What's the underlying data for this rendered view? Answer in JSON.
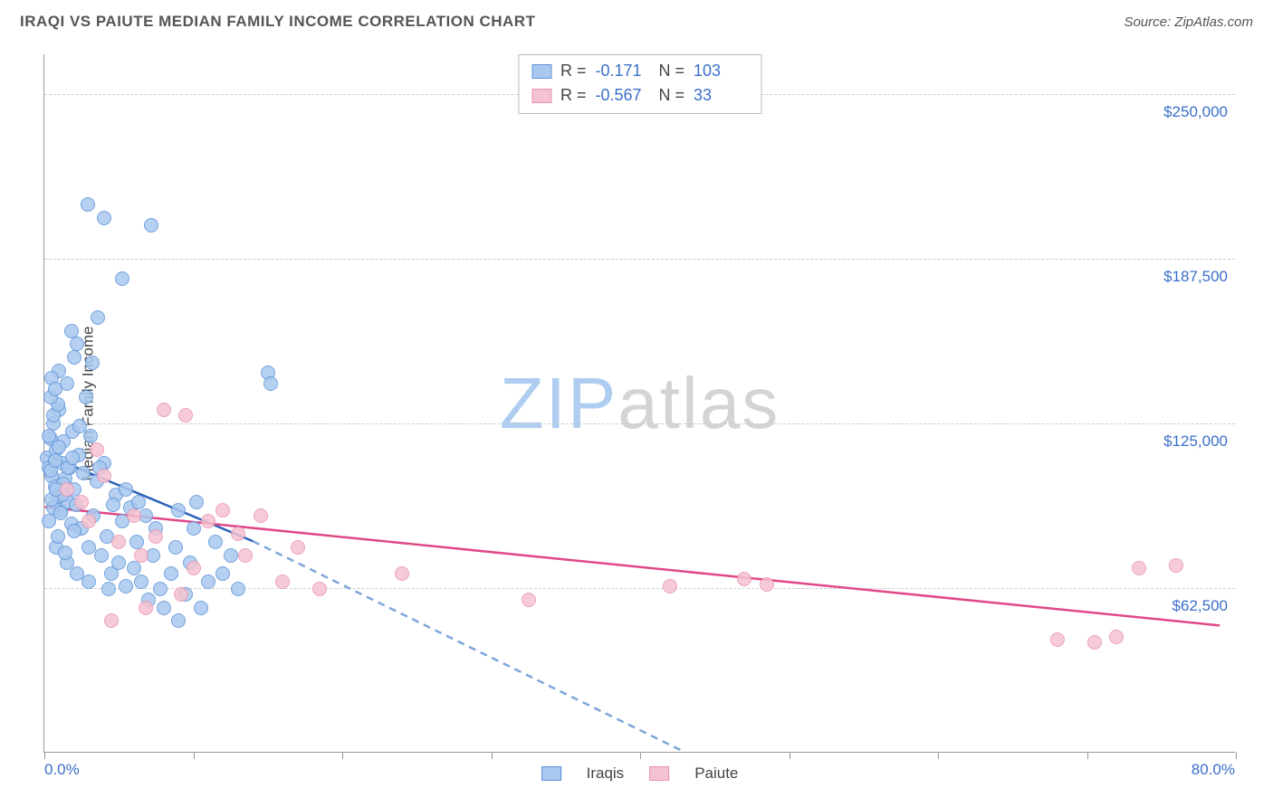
{
  "title": "IRAQI VS PAIUTE MEDIAN FAMILY INCOME CORRELATION CHART",
  "source_label": "Source: ZipAtlas.com",
  "y_axis_label": "Median Family Income",
  "watermark": {
    "part1": "ZIP",
    "part2": "atlas"
  },
  "x_range": {
    "min": 0,
    "max": 80,
    "label_min": "0.0%",
    "label_max": "80.0%"
  },
  "y_range": {
    "min": 0,
    "max": 265000
  },
  "y_gridlines": [
    {
      "value": 62500,
      "label": "$62,500"
    },
    {
      "value": 125000,
      "label": "$125,000"
    },
    {
      "value": 187500,
      "label": "$187,500"
    },
    {
      "value": 250000,
      "label": "$250,000"
    }
  ],
  "x_ticks": [
    0,
    10,
    20,
    30,
    40,
    50,
    60,
    70,
    80
  ],
  "series": [
    {
      "name": "Iraqis",
      "fill_color": "#a9c8ef",
      "stroke_color": "#5e93d8",
      "line_color": "#2b63b8",
      "dash_color": "#7da6db",
      "R": "-0.171",
      "N": "103",
      "trend": {
        "x1": 0,
        "y1": 113000,
        "x2": 14,
        "y2": 80000,
        "dash_to_x": 43,
        "dash_to_y": 0
      },
      "marker_radius": 8,
      "points": [
        {
          "x": 0.2,
          "y": 112000
        },
        {
          "x": 0.3,
          "y": 108000
        },
        {
          "x": 0.4,
          "y": 119000
        },
        {
          "x": 0.5,
          "y": 105000
        },
        {
          "x": 0.6,
          "y": 125000
        },
        {
          "x": 0.7,
          "y": 101000
        },
        {
          "x": 0.8,
          "y": 115000
        },
        {
          "x": 0.9,
          "y": 97000
        },
        {
          "x": 1.0,
          "y": 130000
        },
        {
          "x": 1.1,
          "y": 92000
        },
        {
          "x": 1.2,
          "y": 110000
        },
        {
          "x": 1.3,
          "y": 118000
        },
        {
          "x": 1.4,
          "y": 104000
        },
        {
          "x": 1.5,
          "y": 140000
        },
        {
          "x": 1.6,
          "y": 95000
        },
        {
          "x": 1.7,
          "y": 108000
        },
        {
          "x": 1.8,
          "y": 87000
        },
        {
          "x": 1.9,
          "y": 122000
        },
        {
          "x": 2.0,
          "y": 100000
        },
        {
          "x": 2.1,
          "y": 94000
        },
        {
          "x": 2.3,
          "y": 113000
        },
        {
          "x": 2.5,
          "y": 85000
        },
        {
          "x": 2.6,
          "y": 106000
        },
        {
          "x": 2.8,
          "y": 135000
        },
        {
          "x": 3.0,
          "y": 78000
        },
        {
          "x": 3.1,
          "y": 120000
        },
        {
          "x": 3.3,
          "y": 90000
        },
        {
          "x": 3.5,
          "y": 103000
        },
        {
          "x": 3.8,
          "y": 75000
        },
        {
          "x": 4.0,
          "y": 110000
        },
        {
          "x": 4.2,
          "y": 82000
        },
        {
          "x": 4.5,
          "y": 68000
        },
        {
          "x": 4.8,
          "y": 98000
        },
        {
          "x": 5.0,
          "y": 72000
        },
        {
          "x": 5.2,
          "y": 88000
        },
        {
          "x": 5.5,
          "y": 63000
        },
        {
          "x": 5.8,
          "y": 93000
        },
        {
          "x": 6.0,
          "y": 70000
        },
        {
          "x": 6.2,
          "y": 80000
        },
        {
          "x": 6.5,
          "y": 65000
        },
        {
          "x": 7.0,
          "y": 58000
        },
        {
          "x": 7.3,
          "y": 75000
        },
        {
          "x": 7.8,
          "y": 62000
        },
        {
          "x": 8.0,
          "y": 55000
        },
        {
          "x": 8.5,
          "y": 68000
        },
        {
          "x": 9.0,
          "y": 50000
        },
        {
          "x": 9.5,
          "y": 60000
        },
        {
          "x": 10.0,
          "y": 85000
        },
        {
          "x": 10.5,
          "y": 55000
        },
        {
          "x": 11.0,
          "y": 65000
        },
        {
          "x": 2.0,
          "y": 150000
        },
        {
          "x": 1.0,
          "y": 145000
        },
        {
          "x": 0.5,
          "y": 142000
        },
        {
          "x": 3.2,
          "y": 148000
        },
        {
          "x": 1.8,
          "y": 160000
        },
        {
          "x": 2.2,
          "y": 155000
        },
        {
          "x": 2.9,
          "y": 208000
        },
        {
          "x": 3.6,
          "y": 165000
        },
        {
          "x": 4.0,
          "y": 203000
        },
        {
          "x": 5.2,
          "y": 180000
        },
        {
          "x": 7.2,
          "y": 200000
        },
        {
          "x": 15.0,
          "y": 144000
        },
        {
          "x": 15.2,
          "y": 140000
        },
        {
          "x": 9.0,
          "y": 92000
        },
        {
          "x": 0.8,
          "y": 78000
        },
        {
          "x": 1.5,
          "y": 72000
        },
        {
          "x": 2.2,
          "y": 68000
        },
        {
          "x": 0.3,
          "y": 88000
        },
        {
          "x": 0.9,
          "y": 82000
        },
        {
          "x": 1.4,
          "y": 76000
        },
        {
          "x": 3.0,
          "y": 65000
        },
        {
          "x": 4.3,
          "y": 62000
        },
        {
          "x": 1.2,
          "y": 98000
        },
        {
          "x": 0.6,
          "y": 93000
        },
        {
          "x": 2.0,
          "y": 84000
        },
        {
          "x": 0.4,
          "y": 107000
        },
        {
          "x": 0.7,
          "y": 111000
        },
        {
          "x": 1.0,
          "y": 116000
        },
        {
          "x": 1.3,
          "y": 102000
        },
        {
          "x": 1.6,
          "y": 108000
        },
        {
          "x": 0.5,
          "y": 96000
        },
        {
          "x": 0.8,
          "y": 100000
        },
        {
          "x": 1.1,
          "y": 91000
        },
        {
          "x": 1.9,
          "y": 112000
        },
        {
          "x": 0.3,
          "y": 120000
        },
        {
          "x": 0.6,
          "y": 128000
        },
        {
          "x": 0.9,
          "y": 132000
        },
        {
          "x": 2.4,
          "y": 124000
        },
        {
          "x": 0.4,
          "y": 135000
        },
        {
          "x": 0.7,
          "y": 138000
        },
        {
          "x": 11.5,
          "y": 80000
        },
        {
          "x": 8.8,
          "y": 78000
        },
        {
          "x": 9.8,
          "y": 72000
        },
        {
          "x": 6.8,
          "y": 90000
        },
        {
          "x": 7.5,
          "y": 85000
        },
        {
          "x": 5.5,
          "y": 100000
        },
        {
          "x": 6.3,
          "y": 95000
        },
        {
          "x": 3.7,
          "y": 108000
        },
        {
          "x": 4.6,
          "y": 94000
        },
        {
          "x": 10.2,
          "y": 95000
        },
        {
          "x": 12.0,
          "y": 68000
        },
        {
          "x": 12.5,
          "y": 75000
        },
        {
          "x": 13.0,
          "y": 62000
        }
      ]
    },
    {
      "name": "Paiute",
      "fill_color": "#f5c2d1",
      "stroke_color": "#e993b1",
      "line_color": "#e04888",
      "R": "-0.567",
      "N": "33",
      "trend": {
        "x1": 0,
        "y1": 93000,
        "x2": 79,
        "y2": 48000
      },
      "marker_radius": 8,
      "points": [
        {
          "x": 1.5,
          "y": 100000
        },
        {
          "x": 2.5,
          "y": 95000
        },
        {
          "x": 3.0,
          "y": 88000
        },
        {
          "x": 4.0,
          "y": 105000
        },
        {
          "x": 5.0,
          "y": 80000
        },
        {
          "x": 6.0,
          "y": 90000
        },
        {
          "x": 6.5,
          "y": 75000
        },
        {
          "x": 7.5,
          "y": 82000
        },
        {
          "x": 8.0,
          "y": 130000
        },
        {
          "x": 9.5,
          "y": 128000
        },
        {
          "x": 10.0,
          "y": 70000
        },
        {
          "x": 11.0,
          "y": 88000
        },
        {
          "x": 12.0,
          "y": 92000
        },
        {
          "x": 13.0,
          "y": 83000
        },
        {
          "x": 13.5,
          "y": 75000
        },
        {
          "x": 14.5,
          "y": 90000
        },
        {
          "x": 16.0,
          "y": 65000
        },
        {
          "x": 17.0,
          "y": 78000
        },
        {
          "x": 18.5,
          "y": 62000
        },
        {
          "x": 24.0,
          "y": 68000
        },
        {
          "x": 32.5,
          "y": 58000
        },
        {
          "x": 4.5,
          "y": 50000
        },
        {
          "x": 6.8,
          "y": 55000
        },
        {
          "x": 9.2,
          "y": 60000
        },
        {
          "x": 42.0,
          "y": 63000
        },
        {
          "x": 47.0,
          "y": 66000
        },
        {
          "x": 48.5,
          "y": 64000
        },
        {
          "x": 68.0,
          "y": 43000
        },
        {
          "x": 70.5,
          "y": 42000
        },
        {
          "x": 72.0,
          "y": 44000
        },
        {
          "x": 73.5,
          "y": 70000
        },
        {
          "x": 76.0,
          "y": 71000
        },
        {
          "x": 3.5,
          "y": 115000
        }
      ]
    }
  ],
  "styles": {
    "background_color": "#ffffff",
    "axis_color": "#999999",
    "grid_color": "#cccccc",
    "title_color": "#555555",
    "value_color": "#3b6fc9",
    "title_fontsize": 17,
    "label_fontsize": 17,
    "stats_fontsize": 18,
    "marker_stroke_width": 1.5,
    "trend_line_width": 2.5
  }
}
